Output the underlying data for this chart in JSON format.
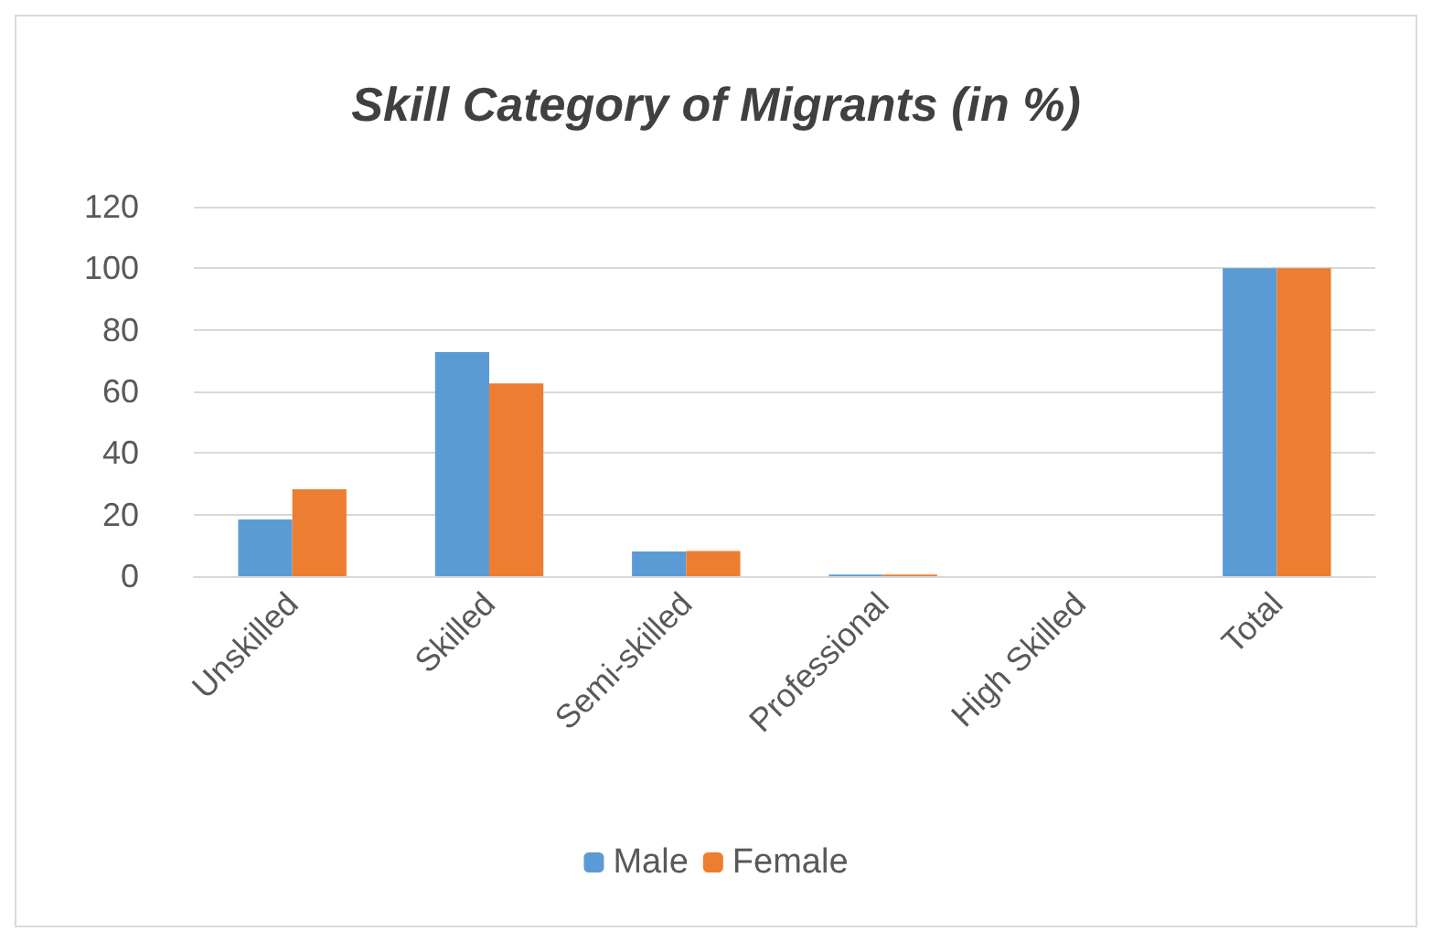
{
  "chart_data": {
    "type": "bar",
    "title": "Skill Category of Migrants (in %)",
    "categories": [
      "Unskilled",
      "Skilled",
      "Semi-skilled",
      "Professional",
      "High Skilled",
      "Total"
    ],
    "series": [
      {
        "name": "Male",
        "color": "#5b9bd5",
        "values": [
          18.4,
          72.8,
          8.0,
          0.5,
          null,
          100
        ]
      },
      {
        "name": "Female",
        "color": "#ed7d31",
        "values": [
          28.2,
          62.6,
          8.2,
          0.5,
          null,
          100
        ]
      }
    ],
    "ylim": [
      0,
      120
    ],
    "yticks": [
      0,
      20,
      40,
      60,
      80,
      100,
      120
    ],
    "grid": "y",
    "legend": "bottom"
  }
}
